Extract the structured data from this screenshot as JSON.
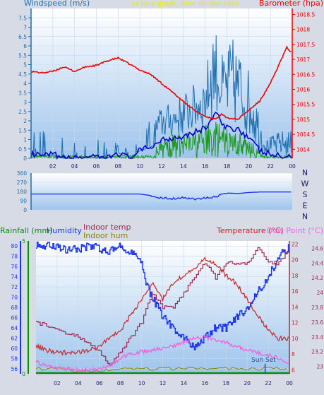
{
  "header": {
    "wind_label": "Windspeed (m/s)",
    "center_title": "24 hour graph, date: 08-Mar-2020",
    "baro_label": "Barometer (hpa)"
  },
  "bottom_header": {
    "rain_label": "Rainfall (mm)",
    "humidity_label": "Humidity",
    "indoor_temp_label": "Indoor temp",
    "indoor_hum_label": "Indoor hum",
    "temp_label": "Temperature (°C)",
    "dew_label": "Dew Point (°C)",
    "sunset_label": "Sun Set"
  },
  "compass_labels": [
    "N",
    "W",
    "S",
    "E",
    "N"
  ],
  "colors": {
    "background": "#d6dbe6",
    "plot_top": "#ffffff",
    "plot_bottom": "#9ec4ec",
    "wind": "#1f6fb0",
    "wind_avg": "#0000cc",
    "gust": "#1a9a1a",
    "baro": "#ee0000",
    "humidity": "#1a33ee",
    "indoor_temp": "#a02850",
    "indoor_hum": "#888800",
    "temperature": "#cc2222",
    "dewpoint": "#ee66dd",
    "rain": "#0a8a0a"
  },
  "chart_data": [
    {
      "type": "line",
      "name": "wind-barometer",
      "x_ticks": [
        "02",
        "04",
        "06",
        "08",
        "10",
        "12",
        "14",
        "16",
        "18",
        "20",
        "22",
        "00"
      ],
      "y_left": {
        "label": "Windspeed (m/s)",
        "ticks": [
          "0",
          "0.5",
          "1",
          "1.5",
          "2",
          "2.5",
          "3",
          "3.5",
          "4",
          "4.5",
          "5",
          "5.5",
          "6",
          "6.5",
          "7",
          "7.5"
        ],
        "range": [
          0,
          8
        ]
      },
      "y_right": {
        "label": "Barometer (hpa)",
        "ticks": [
          "1014",
          "1014.5",
          "1015",
          "1015.5",
          "1016",
          "1016.5",
          "1017",
          "1017.5",
          "1018",
          "1018.5"
        ],
        "range": [
          1013.7,
          1018.7
        ]
      },
      "barometer": [
        [
          0,
          1016.6
        ],
        [
          1,
          1016.55
        ],
        [
          2,
          1016.6
        ],
        [
          3,
          1016.75
        ],
        [
          4,
          1016.6
        ],
        [
          5,
          1016.75
        ],
        [
          6,
          1016.8
        ],
        [
          7,
          1016.95
        ],
        [
          8,
          1017.05
        ],
        [
          9,
          1016.85
        ],
        [
          10,
          1016.65
        ],
        [
          11,
          1016.5
        ],
        [
          12,
          1016.2
        ],
        [
          13,
          1015.9
        ],
        [
          14,
          1015.6
        ],
        [
          15,
          1015.3
        ],
        [
          16,
          1015.1
        ],
        [
          17,
          1015.0
        ],
        [
          17.5,
          1015.2
        ],
        [
          18,
          1015.05
        ],
        [
          19,
          1015.0
        ],
        [
          20,
          1015.3
        ],
        [
          21,
          1015.6
        ],
        [
          22,
          1016.2
        ],
        [
          23,
          1017.0
        ],
        [
          23.5,
          1017.4
        ],
        [
          24,
          1017.2
        ]
      ],
      "wind_avg": [
        [
          0,
          0.2
        ],
        [
          1,
          0.1
        ],
        [
          2,
          0.2
        ],
        [
          3,
          0
        ],
        [
          4,
          0
        ],
        [
          5,
          0.1
        ],
        [
          6,
          0
        ],
        [
          7,
          0
        ],
        [
          8,
          0.3
        ],
        [
          9,
          0
        ],
        [
          10,
          0.4
        ],
        [
          11,
          0.6
        ],
        [
          12,
          1.0
        ],
        [
          13,
          1.1
        ],
        [
          14,
          1.2
        ],
        [
          15,
          1.4
        ],
        [
          16,
          1.6
        ],
        [
          16.5,
          2.0
        ],
        [
          17,
          2.5
        ],
        [
          17.5,
          1.8
        ],
        [
          18,
          1.6
        ],
        [
          19,
          1.6
        ],
        [
          20,
          1.1
        ],
        [
          21,
          0.4
        ],
        [
          22,
          0.2
        ],
        [
          23,
          0.1
        ],
        [
          24,
          0
        ]
      ],
      "wind_peaks": [
        [
          1,
          1.5
        ],
        [
          4.5,
          1.0
        ],
        [
          7.5,
          1.0
        ],
        [
          10,
          1.5
        ],
        [
          12,
          2.8
        ],
        [
          13,
          3.0
        ],
        [
          14,
          3.5
        ],
        [
          15,
          4.0
        ],
        [
          16,
          4.5
        ],
        [
          16.8,
          7.5
        ],
        [
          17.5,
          5.5
        ],
        [
          18.5,
          6.5
        ],
        [
          19.5,
          5.5
        ],
        [
          20.5,
          4.0
        ],
        [
          21.5,
          1.0
        ],
        [
          23,
          1.5
        ]
      ],
      "gust_peaks": [
        [
          12,
          1.2
        ],
        [
          13,
          1.3
        ],
        [
          14,
          1.4
        ],
        [
          15,
          1.5
        ],
        [
          16,
          1.8
        ],
        [
          17,
          2.0
        ],
        [
          18,
          1.6
        ],
        [
          19,
          1.5
        ],
        [
          20,
          1.2
        ],
        [
          21,
          0.3
        ]
      ]
    },
    {
      "type": "line",
      "name": "wind-direction",
      "x_ticks": [
        "02",
        "04",
        "06",
        "08",
        "10",
        "12",
        "14",
        "16",
        "18",
        "20",
        "22",
        "00"
      ],
      "y_ticks": [
        "360",
        "270",
        "180",
        "90",
        "0"
      ],
      "range": [
        0,
        360
      ],
      "direction": [
        [
          0,
          155
        ],
        [
          10,
          155
        ],
        [
          11,
          140
        ],
        [
          12,
          115
        ],
        [
          13,
          110
        ],
        [
          14,
          120
        ],
        [
          15,
          105
        ],
        [
          16,
          115
        ],
        [
          17,
          130
        ],
        [
          18,
          165
        ],
        [
          19,
          160
        ],
        [
          20,
          170
        ],
        [
          21,
          175
        ],
        [
          24,
          175
        ]
      ]
    },
    {
      "type": "line",
      "name": "humidity-temperature",
      "x_ticks": [
        "02",
        "04",
        "06",
        "08",
        "10",
        "12",
        "14",
        "16",
        "18",
        "20",
        "22",
        "00"
      ],
      "humidity_axis": {
        "ticks": [
          "56",
          "58",
          "60",
          "62",
          "64",
          "66",
          "68",
          "70",
          "72",
          "74",
          "76",
          "78",
          "80"
        ],
        "range": [
          55,
          81
        ]
      },
      "rain_axis": {
        "ticks": [
          "0",
          "5"
        ],
        "range": [
          0,
          5
        ]
      },
      "temp_axis": {
        "ticks": [
          "6",
          "8",
          "10",
          "12",
          "14",
          "16",
          "18",
          "20",
          "22"
        ],
        "range": [
          5.5,
          22.4
        ]
      },
      "indoor_axis": {
        "ticks": [
          "23",
          "23.2",
          "23.4",
          "23.6",
          "23.8",
          "24",
          "24.2",
          "24.4",
          "24.6"
        ],
        "range": [
          22.9,
          24.7
        ]
      },
      "humidity": [
        [
          0,
          80
        ],
        [
          2,
          80
        ],
        [
          3,
          79
        ],
        [
          5,
          80
        ],
        [
          7,
          79
        ],
        [
          8,
          80
        ],
        [
          9,
          79
        ],
        [
          10,
          77
        ],
        [
          10.5,
          72
        ],
        [
          11,
          70
        ],
        [
          12,
          66
        ],
        [
          13,
          64
        ],
        [
          14,
          62
        ],
        [
          15,
          60
        ],
        [
          16,
          62
        ],
        [
          17,
          64
        ],
        [
          18,
          64
        ],
        [
          19,
          66
        ],
        [
          20,
          68
        ],
        [
          21,
          71
        ],
        [
          22,
          74
        ],
        [
          23,
          78
        ],
        [
          24,
          80
        ]
      ],
      "temperature": [
        [
          0,
          9
        ],
        [
          1,
          8.5
        ],
        [
          2,
          8.2
        ],
        [
          3,
          8.2
        ],
        [
          4,
          8.3
        ],
        [
          5,
          8.5
        ],
        [
          6,
          9
        ],
        [
          7,
          10
        ],
        [
          8,
          11
        ],
        [
          9,
          13
        ],
        [
          10,
          15
        ],
        [
          11,
          17
        ],
        [
          12,
          15
        ],
        [
          13,
          17
        ],
        [
          14,
          18
        ],
        [
          15,
          19
        ],
        [
          16,
          20
        ],
        [
          17,
          19.5
        ],
        [
          18,
          18
        ],
        [
          19,
          17
        ],
        [
          20,
          15
        ],
        [
          21,
          13
        ],
        [
          22,
          11
        ],
        [
          23,
          10
        ],
        [
          24,
          10
        ]
      ],
      "dewpoint": [
        [
          0,
          7
        ],
        [
          1,
          6.5
        ],
        [
          2,
          6.2
        ],
        [
          3,
          6.1
        ],
        [
          4,
          6.0
        ],
        [
          5,
          6.0
        ],
        [
          6,
          6.0
        ],
        [
          7,
          6.5
        ],
        [
          8,
          7.5
        ],
        [
          9,
          8.0
        ],
        [
          10,
          8.3
        ],
        [
          11,
          8.5
        ],
        [
          12,
          8.8
        ],
        [
          13,
          9.0
        ],
        [
          14,
          9.5
        ],
        [
          15,
          10
        ],
        [
          16,
          10.2
        ],
        [
          17,
          9.8
        ],
        [
          18,
          9.5
        ],
        [
          19,
          9.0
        ],
        [
          20,
          8.5
        ],
        [
          21,
          8.2
        ],
        [
          22,
          7.8
        ],
        [
          23,
          7.5
        ],
        [
          24,
          7.0
        ]
      ],
      "indoor_temp": [
        [
          0,
          23.6
        ],
        [
          2,
          23.5
        ],
        [
          4,
          23.4
        ],
        [
          6,
          23.2
        ],
        [
          7,
          23.0
        ],
        [
          8,
          23.2
        ],
        [
          9,
          23.4
        ],
        [
          10,
          23.6
        ],
        [
          11,
          24.0
        ],
        [
          12,
          23.8
        ],
        [
          13,
          23.8
        ],
        [
          14,
          24.0
        ],
        [
          15,
          24.2
        ],
        [
          16,
          24.4
        ],
        [
          17,
          24.2
        ],
        [
          18,
          24.4
        ],
        [
          19,
          24.4
        ],
        [
          20,
          24.4
        ],
        [
          21,
          24.6
        ],
        [
          22,
          24.4
        ],
        [
          23,
          24.4
        ],
        [
          24,
          24.6
        ]
      ],
      "indoor_hum": [
        [
          0,
          56
        ],
        [
          2,
          56
        ],
        [
          4,
          55.5
        ],
        [
          6,
          55.5
        ],
        [
          7,
          55.8
        ],
        [
          8,
          56
        ],
        [
          10,
          56
        ],
        [
          14,
          56
        ],
        [
          18,
          56
        ],
        [
          22,
          56
        ],
        [
          24,
          56
        ]
      ]
    }
  ]
}
